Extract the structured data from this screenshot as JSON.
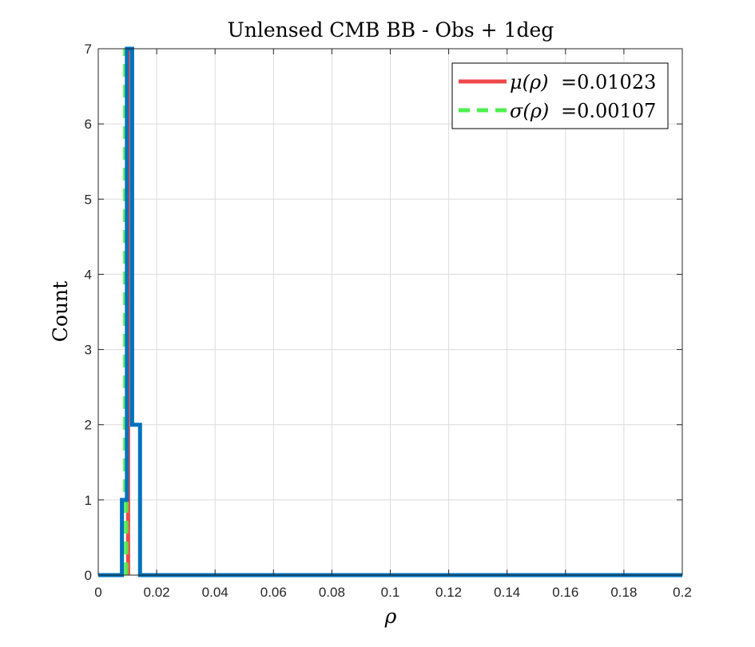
{
  "chart_data": {
    "type": "histogram",
    "title": "Unlensed CMB BB - Obs + 1deg",
    "xlabel": "ρ",
    "ylabel": "Count",
    "xlim": [
      0,
      0.2
    ],
    "ylim": [
      0,
      7
    ],
    "xticks": [
      0,
      0.02,
      0.04,
      0.06,
      0.08,
      0.1,
      0.12,
      0.14,
      0.16,
      0.18,
      0.2
    ],
    "xtick_labels": [
      "0",
      "0.02",
      "0.04",
      "0.06",
      "0.08",
      "0.1",
      "0.12",
      "0.14",
      "0.16",
      "0.18",
      "0.2"
    ],
    "yticks": [
      0,
      1,
      2,
      3,
      4,
      5,
      6,
      7
    ],
    "ytick_labels": [
      "0",
      "1",
      "2",
      "3",
      "4",
      "5",
      "6",
      "7"
    ],
    "grid": true,
    "bins": [
      {
        "x0": 0.0081,
        "x1": 0.0098,
        "count": 1
      },
      {
        "x0": 0.0098,
        "x1": 0.0116,
        "count": 7
      },
      {
        "x0": 0.0116,
        "x1": 0.0143,
        "count": 2
      }
    ],
    "mean": 0.01023,
    "std": 0.00107,
    "legend": {
      "placement": "top-right",
      "entries": [
        {
          "symbol": "μ(ρ)",
          "text": "=0.01023",
          "color": "#f0484a",
          "style": "solid"
        },
        {
          "symbol": "σ(ρ)",
          "text": "=0.00107",
          "color": "#4cf04c",
          "style": "dashed"
        }
      ]
    },
    "colors": {
      "histogram": "#0072bd",
      "mean_line": "#f0484a",
      "std_line": "#4cf04c",
      "grid": "#dcdcdc",
      "axis": "#262626"
    }
  }
}
